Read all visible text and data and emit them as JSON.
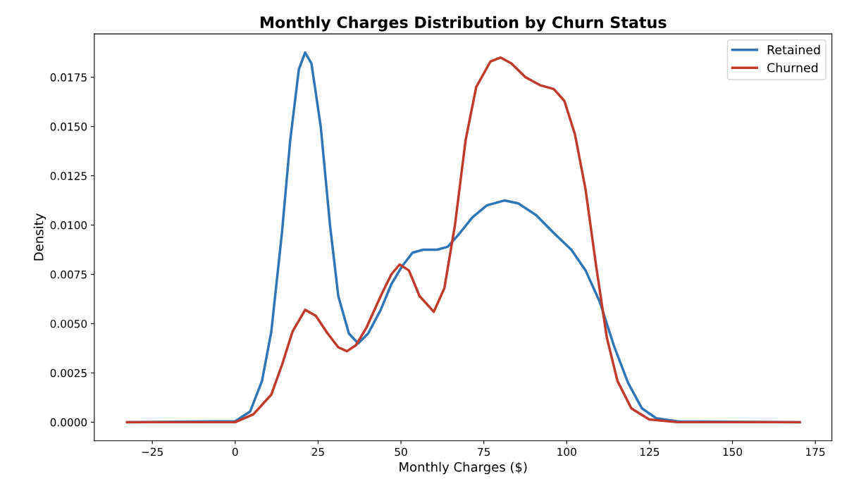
{
  "chart_data": {
    "type": "line",
    "title": "Monthly Charges Distribution by Churn Status",
    "xlabel": "Monthly Charges ($)",
    "ylabel": "Density",
    "xlim": [
      -42.5,
      180
    ],
    "ylim": [
      -0.00094,
      0.0197
    ],
    "xticks": [
      {
        "value": -25,
        "label": "−25"
      },
      0,
      25,
      50,
      75,
      100,
      125,
      150,
      175
    ],
    "yticks": [
      {
        "value": 0,
        "label": "0.0000"
      },
      {
        "value": 0.0025,
        "label": "0.0025"
      },
      {
        "value": 0.005,
        "label": "0.0050"
      },
      {
        "value": 0.0075,
        "label": "0.0075"
      },
      {
        "value": 0.01,
        "label": "0.0100"
      },
      {
        "value": 0.0125,
        "label": "0.0125"
      },
      {
        "value": 0.015,
        "label": "0.0150"
      },
      {
        "value": 0.0175,
        "label": "0.0175"
      }
    ],
    "grid": false,
    "legend": "top right",
    "marker": "none",
    "line_style": "solid",
    "series": [
      {
        "name": "Retained",
        "color": "#2e75b6",
        "x": [
          -32.6,
          0,
          4.5,
          8.1,
          10.9,
          14.1,
          16.6,
          19.2,
          21.1,
          23,
          25.8,
          28.6,
          31.1,
          34.3,
          37.1,
          40.1,
          43.9,
          47.1,
          50.3,
          53.5,
          56.7,
          60.9,
          64.1,
          67.3,
          71.6,
          75.9,
          81.2,
          85.4,
          90.8,
          96.1,
          101.4,
          105.7,
          110,
          114.2,
          118.5,
          122.7,
          127,
          133.4,
          170.3
        ],
        "values": [
          0,
          5e-05,
          0.00054,
          0.0021,
          0.0046,
          0.0096,
          0.0143,
          0.0179,
          0.01875,
          0.0182,
          0.015,
          0.01,
          0.0064,
          0.0045,
          0.004,
          0.0045,
          0.0057,
          0.007,
          0.0079,
          0.0086,
          0.00875,
          0.00875,
          0.0089,
          0.0095,
          0.0104,
          0.011,
          0.01125,
          0.0111,
          0.0105,
          0.0096,
          0.00875,
          0.0077,
          0.0061,
          0.0039,
          0.002,
          0.0007,
          0.0002,
          4e-05,
          0
        ]
      },
      {
        "name": "Churned",
        "color": "#c0392b",
        "x": [
          -32.6,
          0,
          5.5,
          10.9,
          14.1,
          17.3,
          21.1,
          24.3,
          27.9,
          31.1,
          33.7,
          36.4,
          39.6,
          43.9,
          47.1,
          49.6,
          52.4,
          55.6,
          59.9,
          63.1,
          66.3,
          69.5,
          72.7,
          77,
          80.1,
          83.3,
          87.6,
          91.9,
          96.1,
          99.3,
          102.5,
          105.7,
          108.9,
          112.1,
          115.3,
          119.5,
          124.9,
          133.4,
          170.3
        ],
        "values": [
          0,
          0,
          0.0004,
          0.0014,
          0.0029,
          0.0046,
          0.0057,
          0.0054,
          0.0045,
          0.0038,
          0.0036,
          0.0039,
          0.0048,
          0.0064,
          0.0075,
          0.008,
          0.0077,
          0.0064,
          0.0056,
          0.0068,
          0.01,
          0.0143,
          0.017,
          0.0183,
          0.0185,
          0.0182,
          0.0175,
          0.0171,
          0.0169,
          0.0163,
          0.0146,
          0.0118,
          0.0079,
          0.0043,
          0.0021,
          0.0007,
          0.00014,
          0,
          0
        ]
      }
    ]
  }
}
